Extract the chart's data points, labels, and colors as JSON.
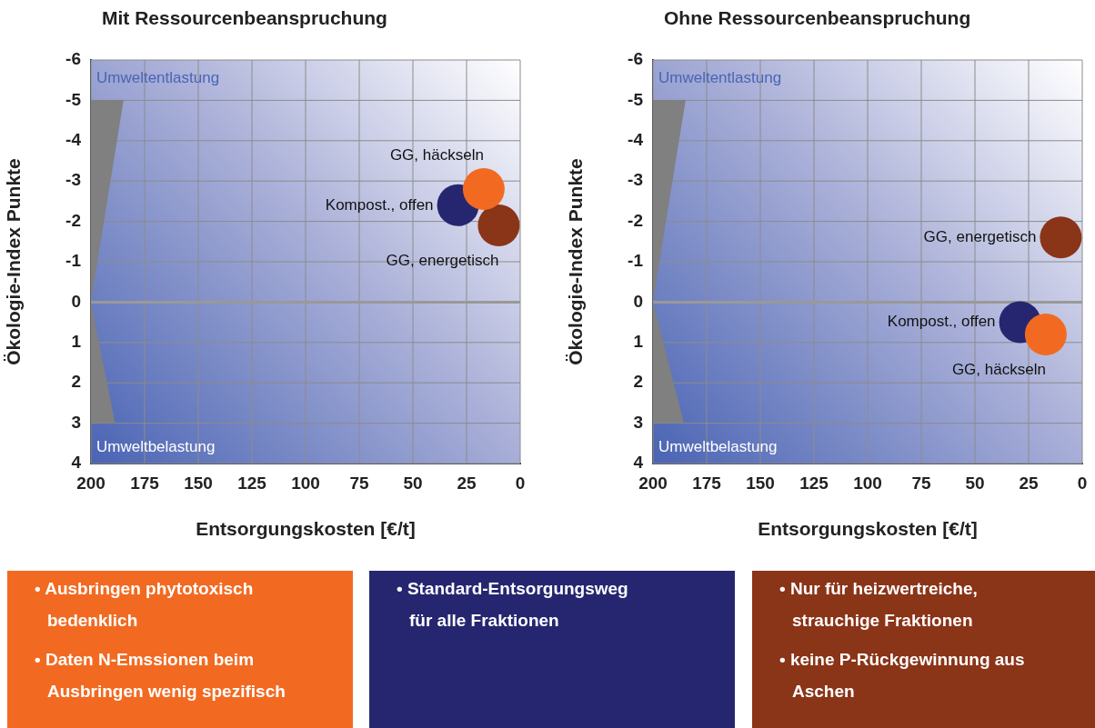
{
  "chart_data": [
    {
      "type": "bubble",
      "title": "Mit Ressourcenbeanspruchung",
      "xlabel": "Entsorgungskosten [€/t]",
      "ylabel": "Ökologie-Index Punkte",
      "xlim": [
        200,
        0
      ],
      "xticks": [
        200,
        175,
        150,
        125,
        100,
        75,
        50,
        25,
        0
      ],
      "ylim": [
        4,
        -6
      ],
      "yticks": [
        -6,
        -5,
        -4,
        -3,
        -2,
        -1,
        0,
        1,
        2,
        3,
        4
      ],
      "grid": true,
      "legend": false,
      "ref_lines": [
        {
          "axis": "y",
          "value": 0,
          "color": "#999999"
        }
      ],
      "annotations": [
        "Umweltentlastung",
        "Umweltbelastung"
      ],
      "series": [
        {
          "name": "GG, häckseln",
          "color": "#f26a21",
          "x": [
            17
          ],
          "values": [
            -2.8
          ],
          "sizes": [
            1
          ]
        },
        {
          "name": "Kompost., offen",
          "color": "#262670",
          "x": [
            29
          ],
          "values": [
            -2.4
          ],
          "sizes": [
            1
          ]
        },
        {
          "name": "GG, energetisch",
          "color": "#8a3418",
          "x": [
            10
          ],
          "values": [
            -1.9
          ],
          "sizes": [
            1
          ]
        }
      ]
    },
    {
      "type": "bubble",
      "title": "Ohne Ressourcenbeanspruchung",
      "xlabel": "Entsorgungskosten [€/t]",
      "ylabel": "Ökologie-Index Punkte",
      "xlim": [
        200,
        0
      ],
      "xticks": [
        200,
        175,
        150,
        125,
        100,
        75,
        50,
        25,
        0
      ],
      "ylim": [
        4,
        -6
      ],
      "yticks": [
        -6,
        -5,
        -4,
        -3,
        -2,
        -1,
        0,
        1,
        2,
        3,
        4
      ],
      "grid": true,
      "legend": false,
      "ref_lines": [
        {
          "axis": "y",
          "value": 0,
          "color": "#999999"
        }
      ],
      "annotations": [
        "Umweltentlastung",
        "Umweltbelastung"
      ],
      "series": [
        {
          "name": "GG, häckseln",
          "color": "#f26a21",
          "x": [
            17
          ],
          "values": [
            0.8
          ],
          "sizes": [
            1
          ]
        },
        {
          "name": "Kompost., offen",
          "color": "#262670",
          "x": [
            29
          ],
          "values": [
            0.5
          ],
          "sizes": [
            1
          ]
        },
        {
          "name": "GG, energetisch",
          "color": "#8a3418",
          "x": [
            10
          ],
          "values": [
            -1.6
          ],
          "sizes": [
            1
          ]
        }
      ]
    },
    {
      "type": "other",
      "color": "#f26a21",
      "annotations": [
        "• Ausbringen phytotoxisch bedenklich",
        "• Daten N-Emssionen beim Ausbringen wenig spezifisch"
      ]
    },
    {
      "type": "other",
      "color": "#262670",
      "annotations": [
        "•  Standard-Entsorgungsweg für alle Fraktionen"
      ]
    },
    {
      "type": "other",
      "color": "#8a3418",
      "annotations": [
        "• Nur für heizwertreiche, strauchige Fraktionen",
        "• keine P-Rückgewinnung aus Aschen"
      ]
    }
  ]
}
